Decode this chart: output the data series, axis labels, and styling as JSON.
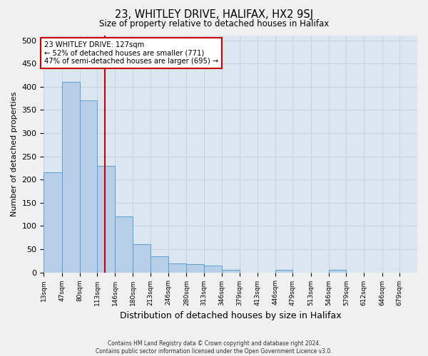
{
  "title": "23, WHITLEY DRIVE, HALIFAX, HX2 9SJ",
  "subtitle": "Size of property relative to detached houses in Halifax",
  "xlabel": "Distribution of detached houses by size in Halifax",
  "ylabel": "Number of detached properties",
  "annotation_line1": "23 WHITLEY DRIVE: 127sqm",
  "annotation_line2": "← 52% of detached houses are smaller (771)",
  "annotation_line3": "47% of semi-detached houses are larger (695) →",
  "bins": [
    13,
    47,
    80,
    113,
    146,
    180,
    213,
    246,
    280,
    313,
    346,
    379,
    413,
    446,
    479,
    513,
    546,
    579,
    612,
    646,
    679,
    712
  ],
  "counts": [
    215,
    410,
    370,
    230,
    120,
    60,
    35,
    20,
    18,
    15,
    5,
    0,
    0,
    5,
    0,
    0,
    5,
    0,
    0,
    0,
    0
  ],
  "bar_color": "#b8cfe8",
  "bar_edge_color": "#5a9fd4",
  "vline_color": "#cc0000",
  "vline_x": 127,
  "annotation_box_facecolor": "#ffffff",
  "annotation_box_edgecolor": "#cc0000",
  "grid_color": "#c8d4e4",
  "bg_color": "#dce6f0",
  "plot_bg_color": "#dce6f0",
  "fig_bg_color": "#f0f0f0",
  "ylim": [
    0,
    510
  ],
  "yticks": [
    0,
    50,
    100,
    150,
    200,
    250,
    300,
    350,
    400,
    450,
    500
  ],
  "footer1": "Contains HM Land Registry data © Crown copyright and database right 2024.",
  "footer2": "Contains public sector information licensed under the Open Government Licence v3.0."
}
